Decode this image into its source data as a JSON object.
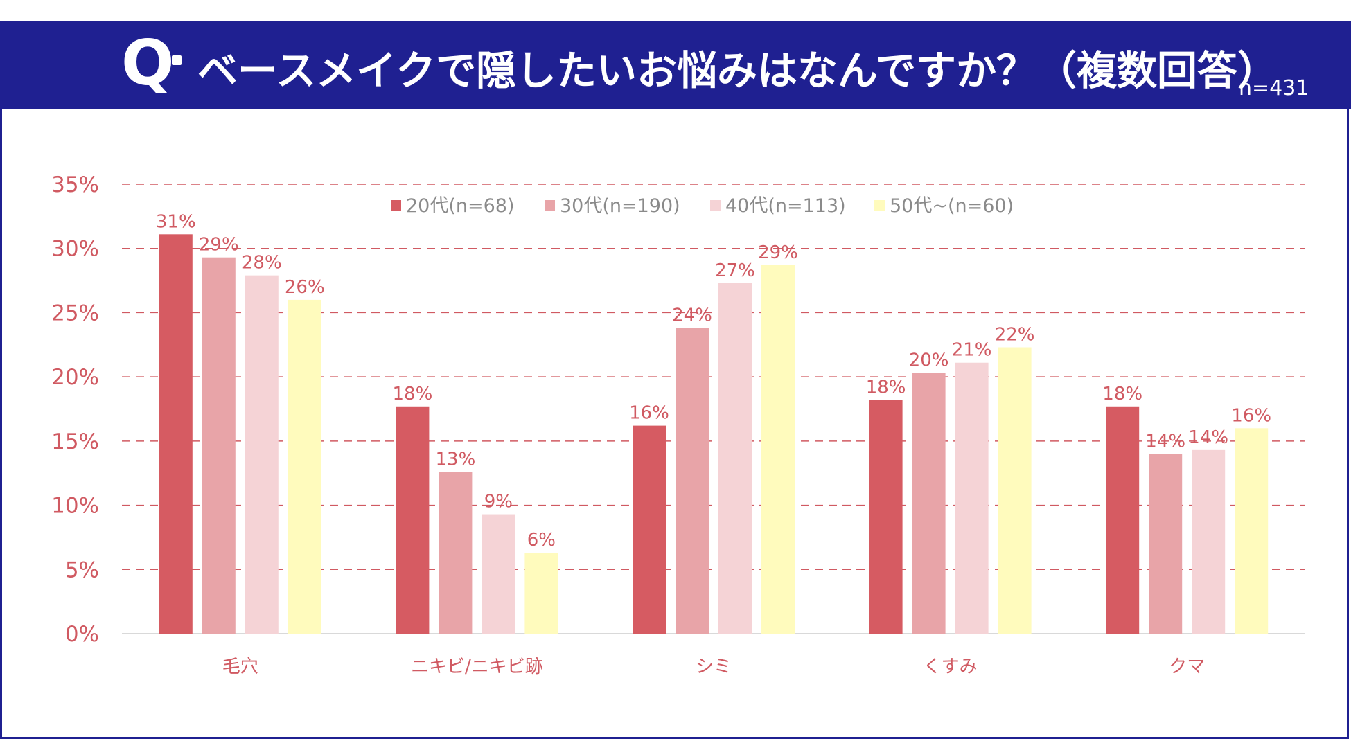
{
  "header": {
    "q_mark": "Q",
    "title": "ベースメイクで隠したいお悩みはなんですか？（複数回答）",
    "sample_size": "n=431"
  },
  "colors": {
    "header_bg": "#1f2091",
    "text_accent": "#d05a62",
    "gridline": "#d05a62",
    "series": [
      "#d65b62",
      "#e8a4a8",
      "#f5d3d6",
      "#fffbbd"
    ]
  },
  "chart_data": {
    "type": "bar",
    "categories": [
      "毛穴",
      "ニキビ/ニキビ跡",
      "シミ",
      "くすみ",
      "クマ"
    ],
    "series": [
      {
        "name": "20代(n=68)",
        "values": [
          31.1,
          17.7,
          16.2,
          18.2,
          17.7
        ],
        "labels": [
          "31%",
          "18%",
          "16%",
          "18%",
          "18%"
        ]
      },
      {
        "name": "30代(n=190)",
        "values": [
          29.3,
          12.6,
          23.8,
          20.3,
          14.0
        ],
        "labels": [
          "29%",
          "13%",
          "24%",
          "20%",
          "14%"
        ]
      },
      {
        "name": "40代(n=113)",
        "values": [
          27.9,
          9.3,
          27.3,
          21.1,
          14.3
        ],
        "labels": [
          "28%",
          "9%",
          "27%",
          "21%",
          "14%"
        ]
      },
      {
        "name": "50代~(n=60)",
        "values": [
          26.0,
          6.3,
          28.7,
          22.3,
          16.0
        ],
        "labels": [
          "26%",
          "6%",
          "29%",
          "22%",
          "16%"
        ]
      }
    ],
    "ylim": [
      0,
      35
    ],
    "yticks": [
      0,
      5,
      10,
      15,
      20,
      25,
      30,
      35
    ],
    "ytick_labels": [
      "0%",
      "5%",
      "10%",
      "15%",
      "20%",
      "25%",
      "30%",
      "35%"
    ],
    "grid": true,
    "legend_position": "top-center"
  }
}
